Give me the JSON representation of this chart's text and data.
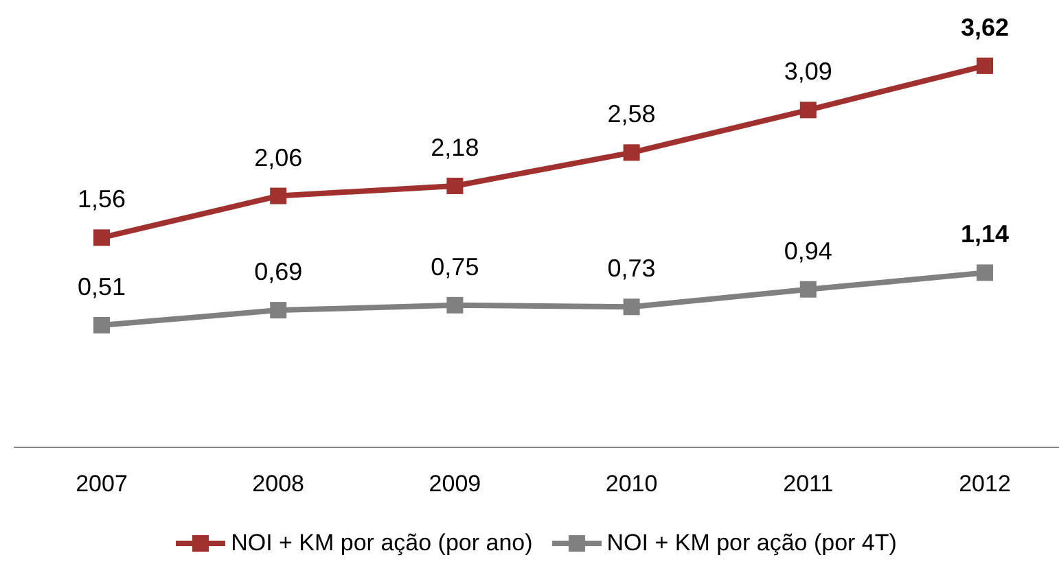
{
  "chart_data": {
    "type": "line",
    "categories": [
      "2007",
      "2008",
      "2009",
      "2010",
      "2011",
      "2012"
    ],
    "series": [
      {
        "name": "NOI + KM por ação (por ano)",
        "color": "#a0312f",
        "values": [
          1.56,
          2.06,
          2.18,
          2.58,
          3.09,
          3.62
        ],
        "value_labels": [
          "1,56",
          "2,06",
          "2,18",
          "2,58",
          "3,09",
          "3,62"
        ]
      },
      {
        "name": "NOI + KM por ação (por 4T)",
        "color": "#808080",
        "values": [
          0.51,
          0.69,
          0.75,
          0.73,
          0.94,
          1.14
        ],
        "value_labels": [
          "0,51",
          "0,69",
          "0,75",
          "0,73",
          "0,94",
          "1,14"
        ]
      }
    ],
    "tick_labels": "x",
    "marker": "square",
    "line_style": "solid",
    "legend": "bottom"
  }
}
